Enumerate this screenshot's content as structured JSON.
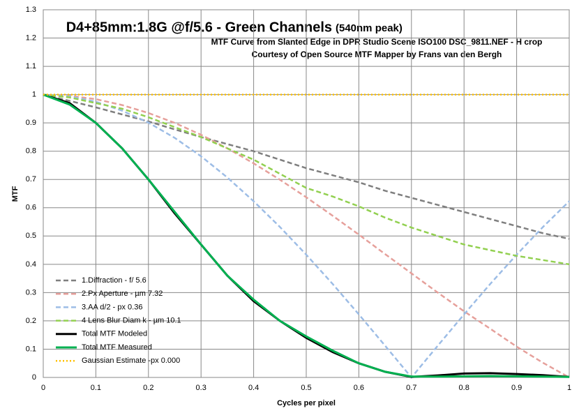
{
  "chart_data": {
    "type": "line",
    "title": "D4+85mm:1.8G @f/5.6 - Green Channels",
    "title_suffix": "(540nm peak)",
    "subtitles": [
      "MTF Curve from Slanted Edge in DPR Studio Scene  ISO100  DSC_9811.NEF - H crop",
      "Courtesy of Open Source MTF Mapper by Frans van den Bergh"
    ],
    "x_label": "Cycles per pixel",
    "y_label": "MTF",
    "x": [
      0,
      0.05,
      0.1,
      0.15,
      0.2,
      0.25,
      0.3,
      0.35,
      0.4,
      0.45,
      0.5,
      0.55,
      0.6,
      0.65,
      0.7,
      0.75,
      0.8,
      0.85,
      0.9,
      0.95,
      1
    ],
    "xlim": [
      0,
      1
    ],
    "xticks": [
      0,
      0.1,
      0.2,
      0.3,
      0.4,
      0.5,
      0.6,
      0.7,
      0.8,
      0.9,
      1
    ],
    "ylim": [
      0,
      1.3
    ],
    "yticks": [
      0,
      0.1,
      0.2,
      0.3,
      0.4,
      0.5,
      0.6,
      0.7,
      0.8,
      0.9,
      1,
      1.1,
      1.2,
      1.3
    ],
    "grid": true,
    "legend": "lower left",
    "series": [
      {
        "name": "1.Diffraction - f/ 5.6",
        "color": "#7f7f7f",
        "dash": "dashed",
        "values": [
          1,
          0.978,
          0.955,
          0.93,
          0.905,
          0.877,
          0.85,
          0.825,
          0.8,
          0.77,
          0.74,
          0.715,
          0.69,
          0.66,
          0.635,
          0.61,
          0.585,
          0.56,
          0.535,
          0.51,
          0.49
        ]
      },
      {
        "name": "2.Px Aperture - µm 7.32",
        "color": "#e6a09b",
        "dash": "dashed",
        "values": [
          1,
          0.996,
          0.984,
          0.963,
          0.935,
          0.9,
          0.858,
          0.81,
          0.757,
          0.699,
          0.637,
          0.572,
          0.505,
          0.436,
          0.368,
          0.3,
          0.234,
          0.172,
          0.109,
          0.052,
          0
        ]
      },
      {
        "name": "3.AA d/2 - px 0.36",
        "color": "#9dbde6",
        "dash": "dashed",
        "values": [
          1,
          0.994,
          0.975,
          0.943,
          0.901,
          0.847,
          0.782,
          0.707,
          0.623,
          0.532,
          0.434,
          0.331,
          0.223,
          0.112,
          0,
          0.112,
          0.223,
          0.331,
          0.434,
          0.532,
          0.623
        ]
      },
      {
        "name": "4 Lens Blur Diam k - µm 10.1",
        "color": "#92d050",
        "dash": "dashed",
        "values": [
          1,
          0.99,
          0.97,
          0.95,
          0.92,
          0.885,
          0.85,
          0.81,
          0.77,
          0.72,
          0.67,
          0.64,
          0.605,
          0.565,
          0.53,
          0.5,
          0.47,
          0.45,
          0.43,
          0.415,
          0.4
        ]
      },
      {
        "name": "Total MTF Modeled",
        "color": "#000000",
        "dash": "solid",
        "values": [
          1,
          0.97,
          0.9,
          0.81,
          0.7,
          0.58,
          0.47,
          0.36,
          0.27,
          0.2,
          0.14,
          0.09,
          0.05,
          0.02,
          0.002,
          0.007,
          0.014,
          0.015,
          0.012,
          0.008,
          0.002
        ]
      },
      {
        "name": "Total MTF Measured",
        "color": "#00b050",
        "dash": "solid",
        "values": [
          1,
          0.965,
          0.9,
          0.81,
          0.7,
          0.585,
          0.47,
          0.36,
          0.275,
          0.2,
          0.145,
          0.095,
          0.05,
          0.02,
          0.003,
          0.003,
          0.004,
          0.005,
          0.004,
          0.003,
          0.002
        ]
      },
      {
        "name": "Gaussian Estimate -px 0.000",
        "color": "#ffc000",
        "dash": "dotted",
        "values": [
          1,
          1,
          1,
          1,
          1,
          1,
          1,
          1,
          1,
          1,
          1,
          1,
          1,
          1,
          1,
          1,
          1,
          1,
          1,
          1,
          1
        ]
      }
    ]
  }
}
